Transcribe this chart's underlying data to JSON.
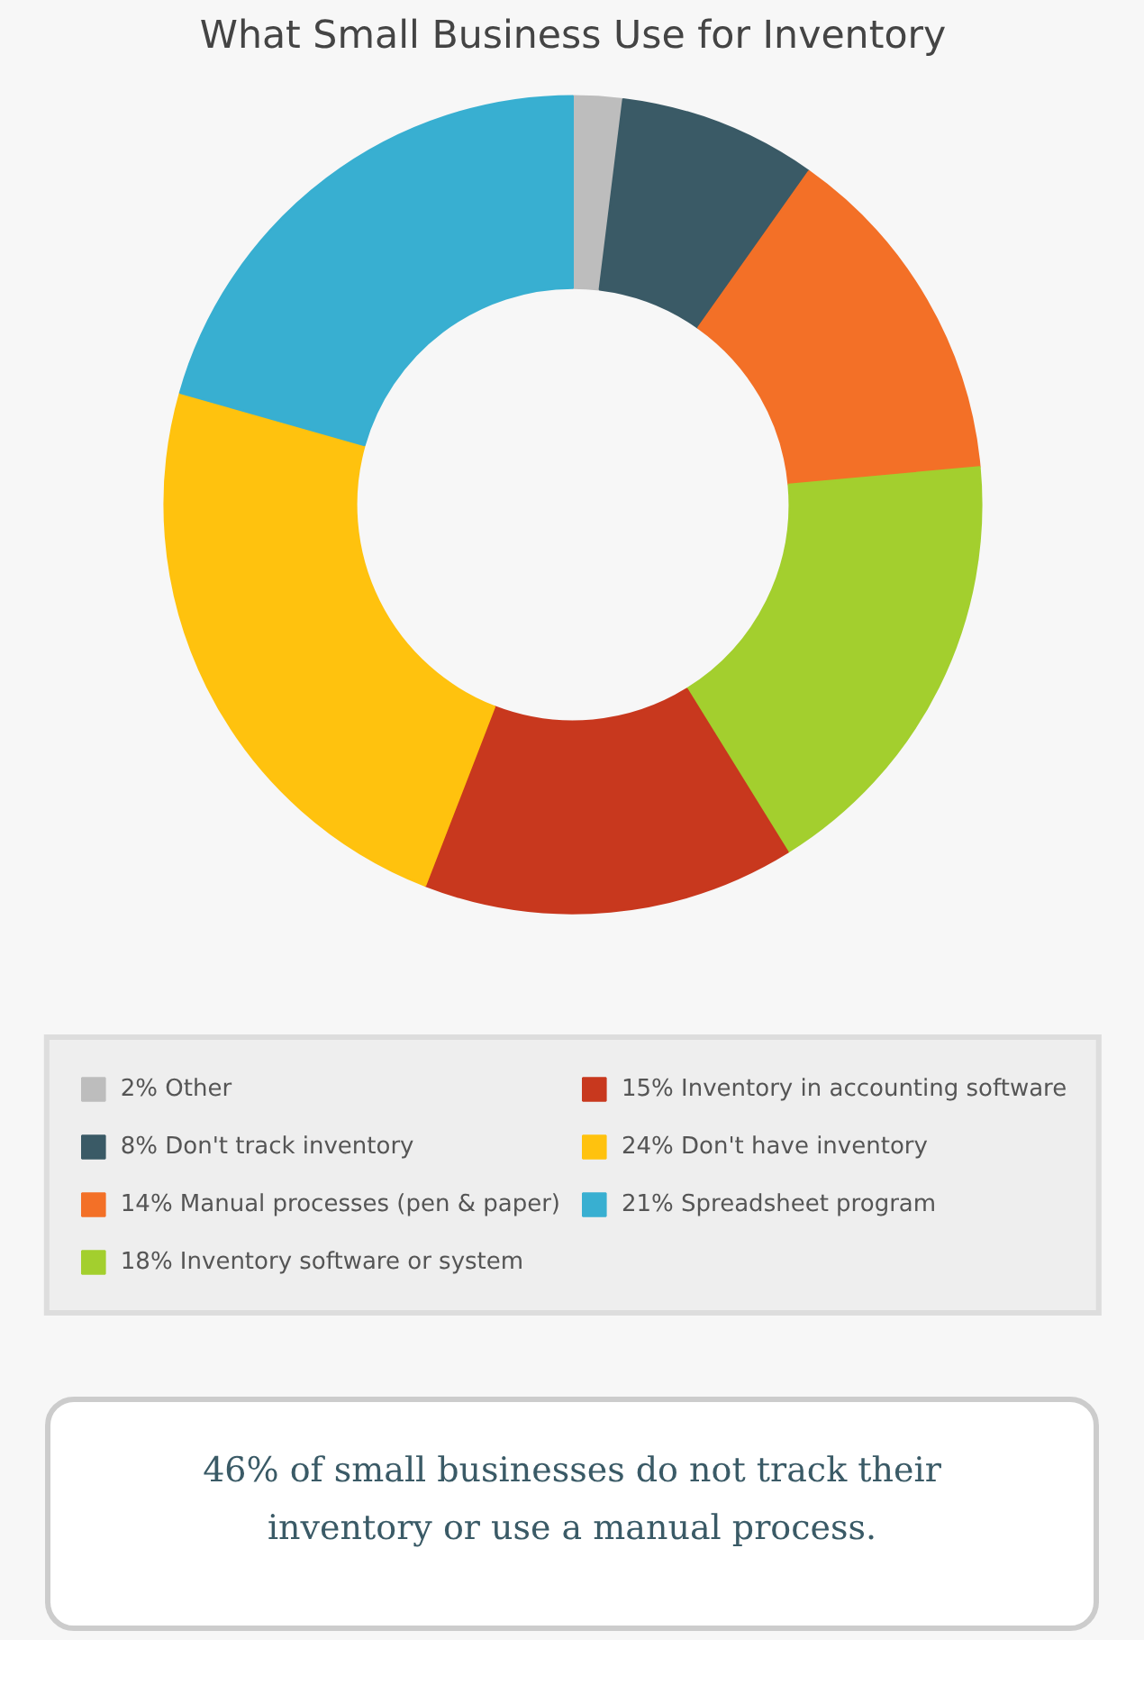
{
  "chart_data": {
    "type": "donut",
    "title": "What Small Business Use for Inventory",
    "categories": [
      "Other",
      "Don't track inventory",
      "Manual processes (pen & paper)",
      "Inventory software or system",
      "Inventory in accounting software",
      "Don't have inventory",
      "Spreadsheet program"
    ],
    "values": [
      2,
      8,
      14,
      18,
      15,
      24,
      21
    ],
    "value_labels": [
      "2%",
      "8%",
      "14%",
      "18%",
      "15%",
      "24%",
      "21%"
    ],
    "colors": [
      "#bdbdbd",
      "#3a5a66",
      "#f37027",
      "#a3cf2e",
      "#c8381e",
      "#ffc20e",
      "#38afd1"
    ],
    "legend": "bottom",
    "annotations": [
      "46% of small businesses do not track their inventory or use a manual process."
    ]
  }
}
